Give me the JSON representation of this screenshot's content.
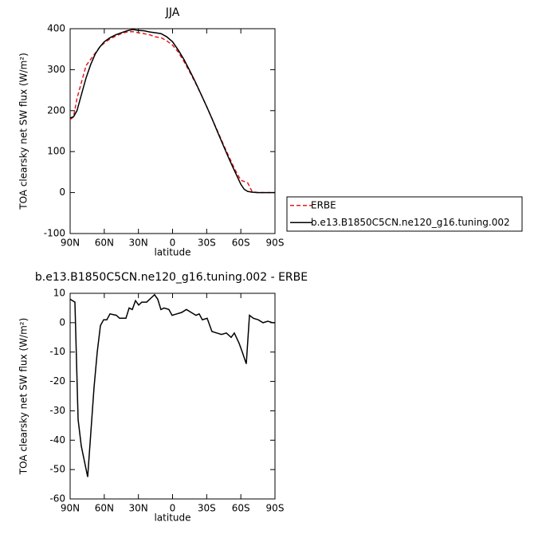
{
  "chart_data": [
    {
      "type": "line",
      "title": "JJA",
      "xlabel": "latitude",
      "ylabel": "TOA clearsky net SW flux (W/m²)",
      "x": [
        90,
        87,
        84,
        80,
        76,
        72,
        68,
        64,
        60,
        55,
        50,
        45,
        40,
        35,
        30,
        25,
        20,
        15,
        10,
        5,
        0,
        -5,
        -10,
        -15,
        -20,
        -25,
        -30,
        -35,
        -40,
        -45,
        -50,
        -55,
        -60,
        -63,
        -66,
        -70,
        -75,
        -80,
        -85,
        -90
      ],
      "xlim": [
        90,
        -90
      ],
      "xticks": [
        {
          "value": 90,
          "label": "90N"
        },
        {
          "value": 60,
          "label": "60N"
        },
        {
          "value": 30,
          "label": "30N"
        },
        0,
        {
          "value": -30,
          "label": "30S"
        },
        {
          "value": -60,
          "label": "60S"
        },
        {
          "value": -90,
          "label": "90S"
        }
      ],
      "ylim": [
        -100,
        400
      ],
      "yticks": [
        -100,
        0,
        100,
        200,
        300,
        400
      ],
      "legend": "right",
      "series": [
        {
          "name": "ERBE",
          "color": "#e41a1c",
          "line_style": "dashed",
          "values": [
            178,
            185,
            230,
            270,
            310,
            325,
            340,
            355,
            365,
            375,
            382,
            388,
            392,
            393,
            390,
            388,
            385,
            380,
            378,
            370,
            360,
            343,
            320,
            295,
            268,
            240,
            210,
            178,
            147,
            115,
            85,
            55,
            30,
            27,
            24,
            2,
            0,
            0,
            0,
            0
          ]
        },
        {
          "name": "b.e13.B1850C5CN.ne120_g16.tuning.002",
          "color": "#000000",
          "line_style": "solid",
          "values": [
            182,
            185,
            200,
            240,
            280,
            312,
            338,
            355,
            368,
            378,
            385,
            390,
            395,
            398,
            396,
            395,
            392,
            390,
            388,
            380,
            368,
            348,
            325,
            298,
            270,
            240,
            210,
            178,
            145,
            112,
            80,
            50,
            20,
            8,
            3,
            1,
            0,
            0,
            0,
            0
          ]
        }
      ]
    },
    {
      "type": "line",
      "title": "b.e13.B1850C5CN.ne120_g16.tuning.002 - ERBE",
      "xlabel": "latitude",
      "ylabel": "TOA clearsky net SW flux (W/m²)",
      "x": [
        90,
        85.8,
        83,
        80.2,
        74.6,
        69,
        66.2,
        63.4,
        60.6,
        57.8,
        55,
        49.4,
        46.6,
        41,
        38.2,
        35.4,
        32.6,
        29.8,
        27,
        22.8,
        18.6,
        15.8,
        13,
        10.2,
        7.4,
        3.2,
        0.4,
        -3.8,
        -8,
        -12.2,
        -16.4,
        -20.6,
        -23.4,
        -26.2,
        -30.4,
        -34.6,
        -38.9,
        -43,
        -47.3,
        -51.5,
        -54.3,
        -58.5,
        -61.3,
        -64.8,
        -67.6,
        -71,
        -75.3,
        -79.5,
        -83.7,
        -87.9,
        -90
      ],
      "xlim": [
        90,
        -90
      ],
      "xticks": [
        {
          "value": 90,
          "label": "90N"
        },
        {
          "value": 60,
          "label": "60N"
        },
        {
          "value": 30,
          "label": "30N"
        },
        0,
        {
          "value": -30,
          "label": "30S"
        },
        {
          "value": -60,
          "label": "60S"
        },
        {
          "value": -90,
          "label": "90S"
        }
      ],
      "ylim": [
        -60,
        10
      ],
      "yticks": [
        -60,
        -50,
        -40,
        -30,
        -20,
        -10,
        0,
        10
      ],
      "series": [
        {
          "color": "#000000",
          "line_style": "solid",
          "values": [
            8,
            7,
            -33,
            -42,
            -52.5,
            -22,
            -10,
            -1,
            1,
            1,
            3,
            2.5,
            1.5,
            1.5,
            5,
            4.5,
            7.5,
            6,
            7,
            7,
            8.5,
            9.5,
            8,
            4.5,
            5,
            4.5,
            2.5,
            3,
            3.5,
            4.5,
            3.5,
            2.5,
            3,
            1,
            1.5,
            -3,
            -3.5,
            -4,
            -3.5,
            -5,
            -3.5,
            -7,
            -10,
            -14,
            2.5,
            1.5,
            1,
            0,
            0.5,
            0,
            0
          ]
        }
      ]
    }
  ]
}
